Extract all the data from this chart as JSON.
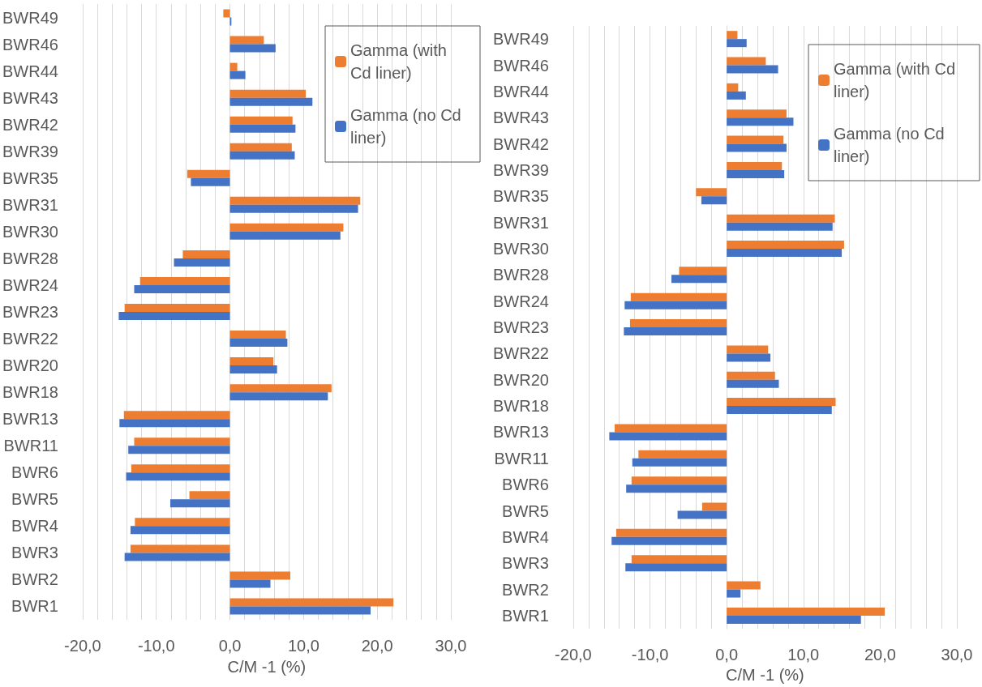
{
  "chart_data": [
    {
      "type": "bar",
      "orientation": "horizontal",
      "xlabel": "C/M -1 (%)",
      "categories": [
        "BWR49",
        "BWR46",
        "BWR44",
        "BWR43",
        "BWR42",
        "BWR39",
        "BWR35",
        "BWR31",
        "BWR30",
        "BWR28",
        "BWR24",
        "BWR23",
        "BWR22",
        "BWR20",
        "BWR18",
        "BWR13",
        "BWR11",
        "BWR6",
        "BWR5",
        "BWR4",
        "BWR3",
        "BWR2",
        "BWR1"
      ],
      "series": [
        {
          "name": "Gamma (with Cd liner)",
          "color": "#ed7d31",
          "values": [
            -0.9,
            4.6,
            1.0,
            10.3,
            8.5,
            8.4,
            -5.8,
            17.7,
            15.4,
            -6.4,
            -12.2,
            -14.3,
            7.6,
            5.9,
            13.8,
            -14.4,
            -13.0,
            -13.4,
            -5.5,
            -12.9,
            -13.5,
            8.2,
            22.2
          ]
        },
        {
          "name": "Gamma (no Cd liner)",
          "color": "#4472c4",
          "values": [
            0.2,
            6.2,
            2.1,
            11.2,
            8.9,
            8.8,
            -5.3,
            17.4,
            15.0,
            -7.6,
            -13.0,
            -15.1,
            7.8,
            6.4,
            13.3,
            -15.0,
            -13.8,
            -14.1,
            -8.1,
            -13.5,
            -14.3,
            5.5,
            19.1
          ]
        }
      ],
      "xlim": [
        -20,
        30
      ],
      "xticks": [
        {
          "value": -20,
          "label": "-20,0"
        },
        {
          "value": -18,
          "label": null
        },
        {
          "value": -16,
          "label": null
        },
        {
          "value": -14,
          "label": null
        },
        {
          "value": -12,
          "label": null
        },
        {
          "value": -10,
          "label": "-10,0"
        },
        {
          "value": -8,
          "label": null
        },
        {
          "value": -6,
          "label": null
        },
        {
          "value": -4,
          "label": null
        },
        {
          "value": -2,
          "label": null
        },
        {
          "value": 0,
          "label": "0,0"
        },
        {
          "value": 2,
          "label": null
        },
        {
          "value": 4,
          "label": null
        },
        {
          "value": 6,
          "label": null
        },
        {
          "value": 8,
          "label": null
        },
        {
          "value": 10,
          "label": "10,0"
        },
        {
          "value": 12,
          "label": null
        },
        {
          "value": 14,
          "label": null
        },
        {
          "value": 16,
          "label": null
        },
        {
          "value": 18,
          "label": null
        },
        {
          "value": 20,
          "label": "20,0"
        },
        {
          "value": 22,
          "label": null
        },
        {
          "value": 24,
          "label": null
        },
        {
          "value": 26,
          "label": null
        },
        {
          "value": 28,
          "label": null
        },
        {
          "value": 30,
          "label": "30,0"
        }
      ],
      "grid": "x",
      "legend": "top right"
    },
    {
      "type": "bar",
      "orientation": "horizontal",
      "xlabel": "C/M -1 (%)",
      "categories": [
        "BWR49",
        "BWR46",
        "BWR44",
        "BWR43",
        "BWR42",
        "BWR39",
        "BWR35",
        "BWR31",
        "BWR30",
        "BWR28",
        "BWR24",
        "BWR23",
        "BWR22",
        "BWR20",
        "BWR18",
        "BWR13",
        "BWR11",
        "BWR6",
        "BWR5",
        "BWR4",
        "BWR3",
        "BWR2",
        "BWR1"
      ],
      "series": [
        {
          "name": "Gamma (with Cd liner)",
          "color": "#ed7d31",
          "values": [
            1.4,
            5.1,
            1.5,
            7.8,
            7.4,
            7.2,
            -4.0,
            14.1,
            15.3,
            -6.2,
            -12.5,
            -12.6,
            5.4,
            6.3,
            14.2,
            -14.6,
            -11.5,
            -12.4,
            -3.2,
            -14.4,
            -12.4,
            4.4,
            20.6
          ]
        },
        {
          "name": "Gamma (no Cd liner)",
          "color": "#4472c4",
          "values": [
            2.6,
            6.7,
            2.5,
            8.7,
            7.8,
            7.5,
            -3.3,
            13.8,
            15.0,
            -7.2,
            -13.3,
            -13.4,
            5.7,
            6.8,
            13.7,
            -15.3,
            -12.3,
            -13.1,
            -6.4,
            -15.0,
            -13.2,
            1.8,
            17.5
          ]
        }
      ],
      "xlim": [
        -20,
        30
      ],
      "xticks": [
        {
          "value": -20,
          "label": "-20,0"
        },
        {
          "value": -18,
          "label": null
        },
        {
          "value": -16,
          "label": null
        },
        {
          "value": -14,
          "label": null
        },
        {
          "value": -12,
          "label": null
        },
        {
          "value": -10,
          "label": "-10,0"
        },
        {
          "value": -8,
          "label": null
        },
        {
          "value": -6,
          "label": null
        },
        {
          "value": -4,
          "label": null
        },
        {
          "value": -2,
          "label": null
        },
        {
          "value": 0,
          "label": "0,0"
        },
        {
          "value": 2,
          "label": null
        },
        {
          "value": 4,
          "label": null
        },
        {
          "value": 6,
          "label": null
        },
        {
          "value": 8,
          "label": null
        },
        {
          "value": 10,
          "label": "10,0"
        },
        {
          "value": 12,
          "label": null
        },
        {
          "value": 14,
          "label": null
        },
        {
          "value": 16,
          "label": null
        },
        {
          "value": 18,
          "label": null
        },
        {
          "value": 20,
          "label": "20,0"
        },
        {
          "value": 22,
          "label": null
        },
        {
          "value": 24,
          "label": null
        },
        {
          "value": 26,
          "label": null
        },
        {
          "value": 28,
          "label": null
        },
        {
          "value": 30,
          "label": "30,0"
        }
      ],
      "grid": "x",
      "legend": "top right"
    }
  ]
}
